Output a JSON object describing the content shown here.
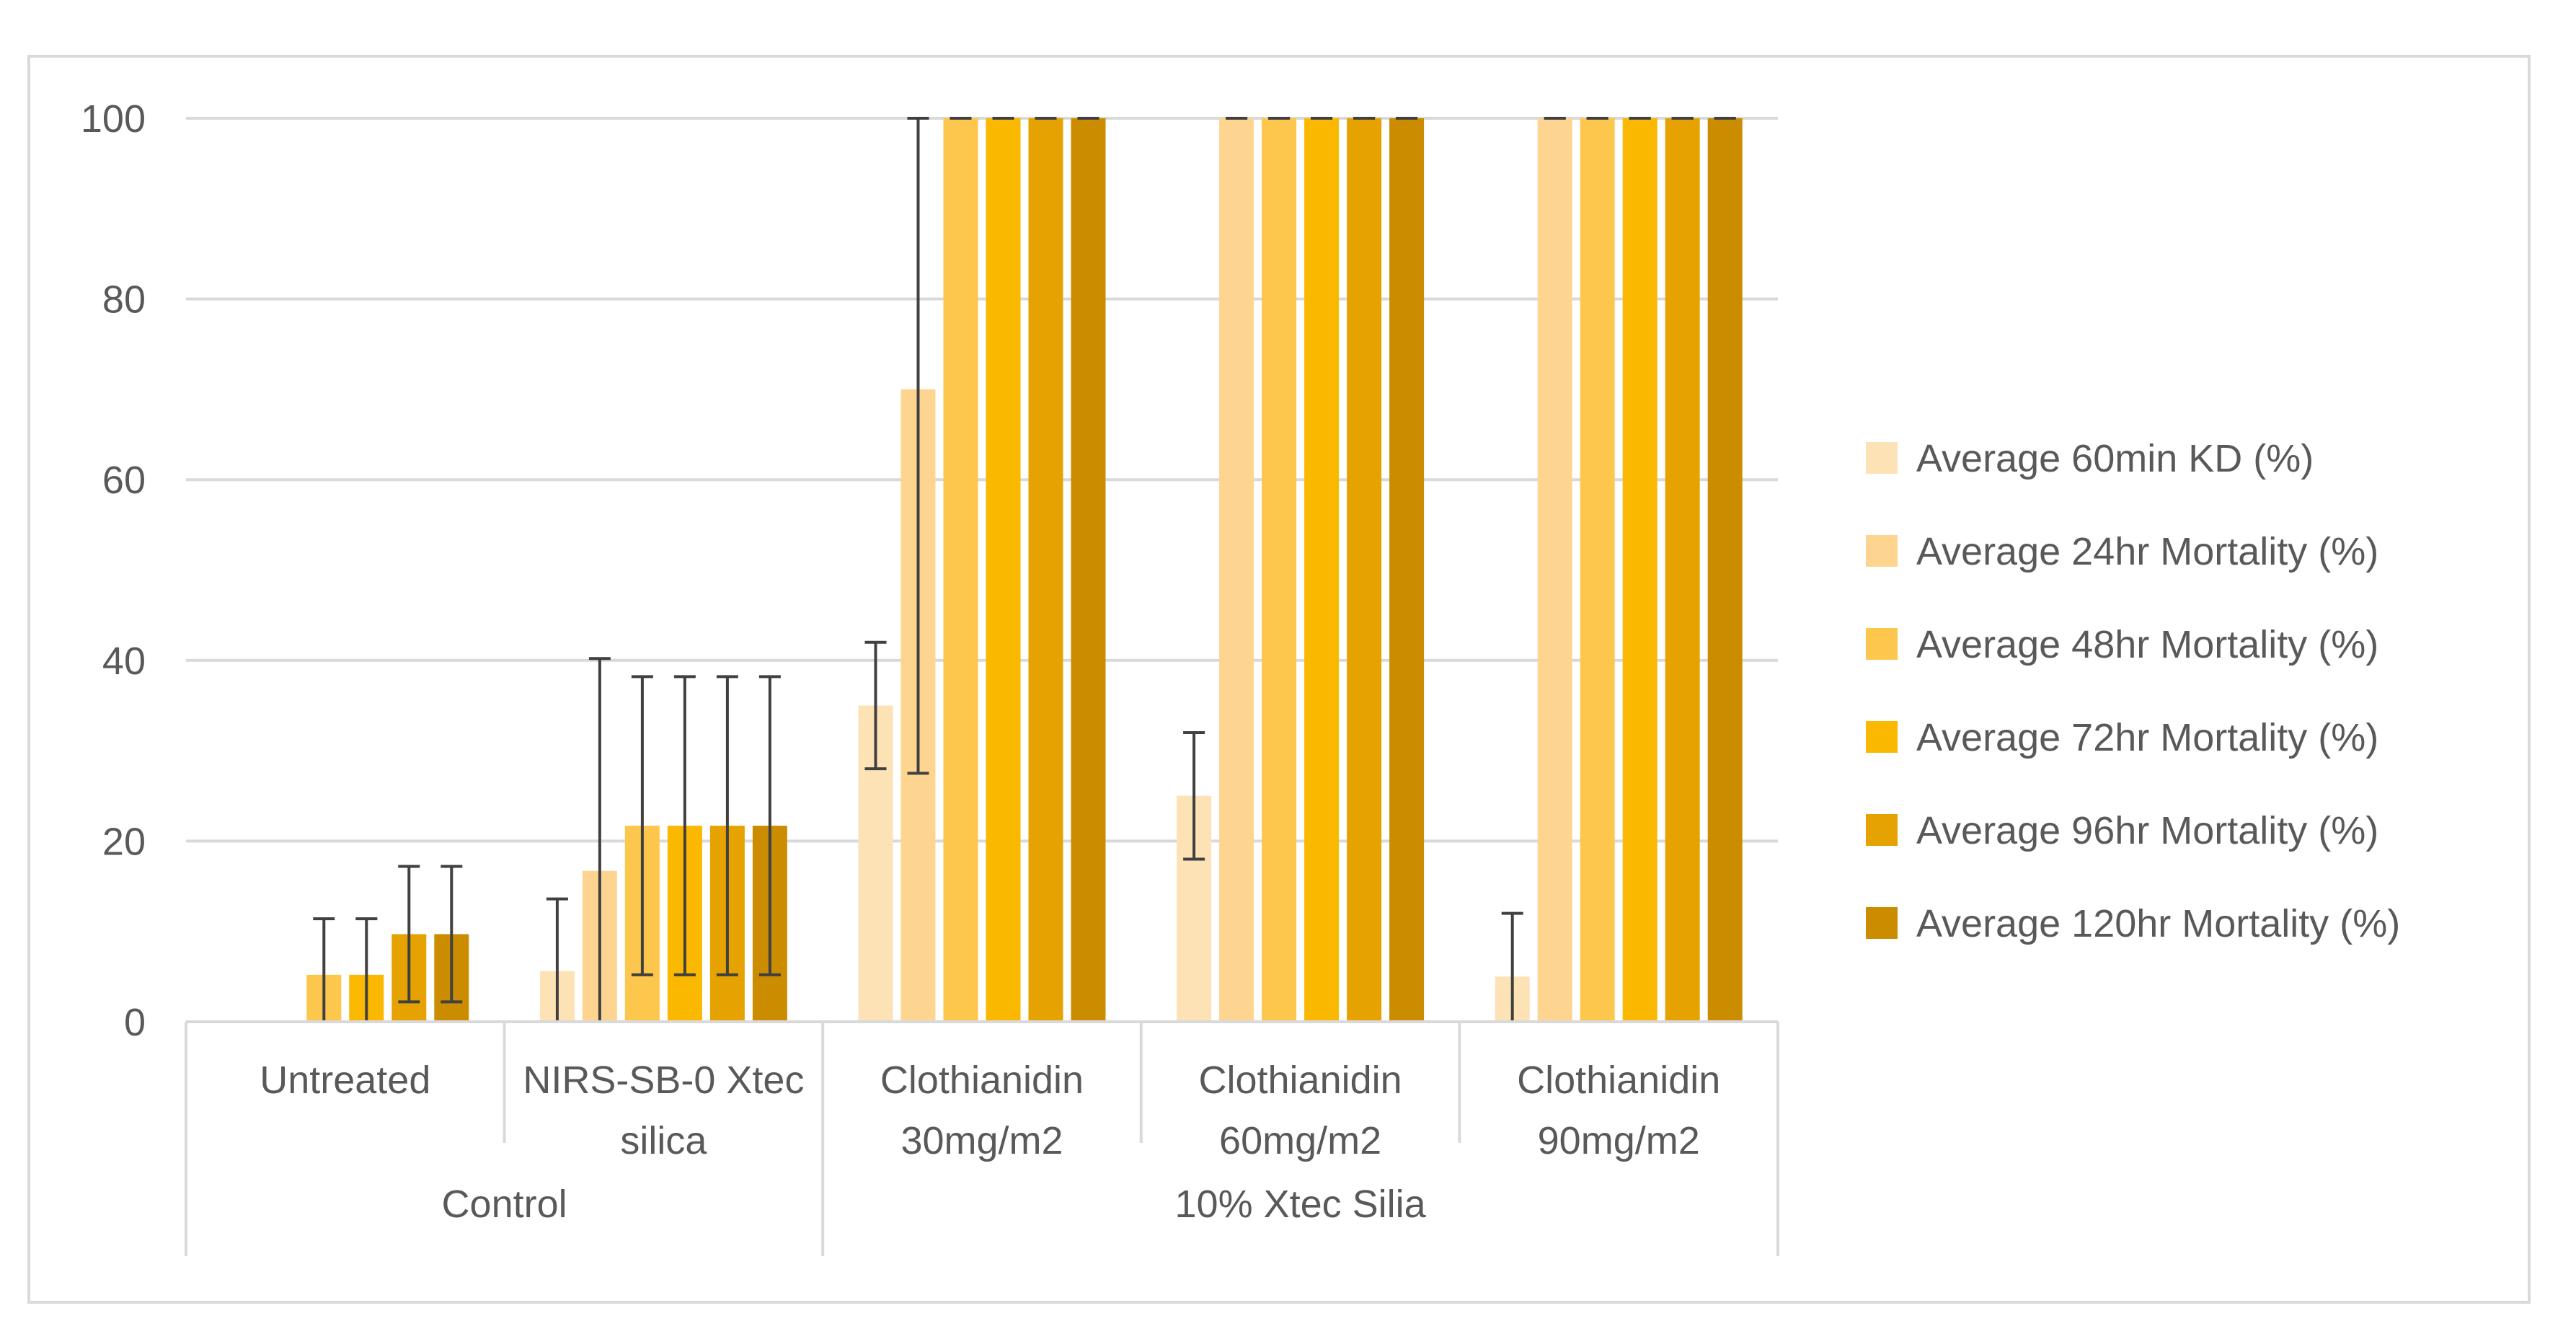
{
  "chart_data": {
    "type": "bar",
    "title": "",
    "xlabel": "",
    "ylabel": "",
    "ylim": [
      0,
      100
    ],
    "yticks": [
      0,
      20,
      40,
      60,
      80,
      100
    ],
    "grid": true,
    "legend_position": "right",
    "groups": [
      {
        "label": "Control",
        "categories": [
          0,
          1
        ]
      },
      {
        "label": "10% Xtec Silia",
        "categories": [
          2,
          3,
          4
        ]
      }
    ],
    "categories": [
      [
        "Untreated"
      ],
      [
        "NIRS-SB-0 Xtec",
        "silica"
      ],
      [
        "Clothianidin",
        "30mg/m2"
      ],
      [
        "Clothianidin",
        "60mg/m2"
      ],
      [
        "Clothianidin",
        "90mg/m2"
      ]
    ],
    "series": [
      {
        "name": "Average 60min KD (%)",
        "color": "#fde2b6",
        "values": [
          0,
          5.6,
          35,
          25,
          5
        ],
        "errors": [
          null,
          8,
          7,
          7,
          7
        ]
      },
      {
        "name": "Average 24hr Mortality (%)",
        "color": "#fdd590",
        "values": [
          0,
          16.7,
          70,
          100,
          100
        ],
        "errors": [
          null,
          23.5,
          42.5,
          0,
          0
        ]
      },
      {
        "name": "Average 48hr Mortality (%)",
        "color": "#fdc64c",
        "values": [
          5.2,
          21.7,
          100,
          100,
          100
        ],
        "errors": [
          6.2,
          16.5,
          0,
          0,
          0
        ]
      },
      {
        "name": "Average 72hr Mortality (%)",
        "color": "#fbb800",
        "values": [
          5.2,
          21.7,
          100,
          100,
          100
        ],
        "errors": [
          6.2,
          16.5,
          0,
          0,
          0
        ]
      },
      {
        "name": "Average 96hr Mortality (%)",
        "color": "#e6a200",
        "values": [
          9.7,
          21.7,
          100,
          100,
          100
        ],
        "errors": [
          7.5,
          16.5,
          0,
          0,
          0
        ]
      },
      {
        "name": "Average 120hr Mortality (%)",
        "color": "#cc8c00",
        "values": [
          9.7,
          21.7,
          100,
          100,
          100
        ],
        "errors": [
          7.5,
          16.5,
          0,
          0,
          0
        ]
      }
    ]
  }
}
